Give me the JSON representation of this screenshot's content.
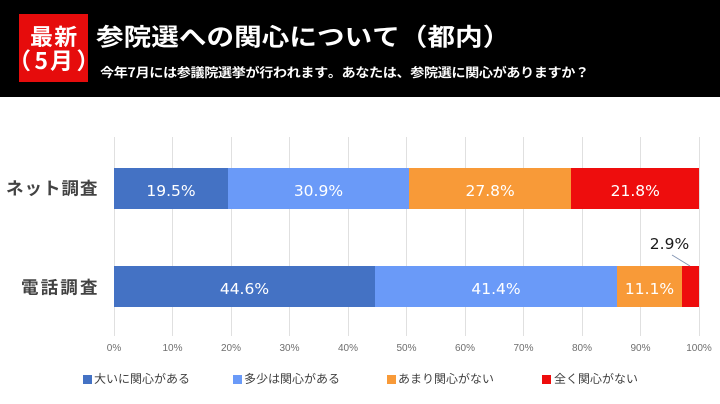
{
  "header": {
    "badge": {
      "line1": "最新",
      "line2": "（5月）"
    },
    "title": "参院選への関心について（都内）",
    "subtitle": "今年7月には参議院選挙が行われます。あなたは、参院選に関心がありますか？"
  },
  "chart_data": {
    "type": "bar",
    "orientation": "horizontal",
    "stacked": true,
    "unit": "%",
    "categories": [
      "ネット調査",
      "電話調査"
    ],
    "series": [
      {
        "name": "大いに関心がある",
        "color": "#4472c4",
        "values": [
          19.5,
          44.6
        ]
      },
      {
        "name": "多少は関心がある",
        "color": "#6a9af8",
        "values": [
          30.9,
          41.4
        ]
      },
      {
        "name": "あまり関心がない",
        "color": "#f89a38",
        "values": [
          27.8,
          11.1
        ]
      },
      {
        "name": "全く関心がない",
        "color": "#ee0d0d",
        "values": [
          21.8,
          2.9
        ]
      }
    ],
    "labels": [
      [
        "19.5%",
        "30.9%",
        "27.8%",
        "21.8%"
      ],
      [
        "44.6%",
        "41.4%",
        "11.1%",
        "2.9%"
      ]
    ],
    "xlim": [
      0,
      100
    ],
    "x_ticks": [
      "0%",
      "10%",
      "20%",
      "30%",
      "40%",
      "50%",
      "60%",
      "70%",
      "80%",
      "90%",
      "100%"
    ],
    "grid": true,
    "legend_position": "bottom"
  },
  "colors": {
    "badge_bg": "#e60c0c",
    "header_bg": "#000000",
    "title_text": "#ffffff",
    "bar_label_text": "#ffffff",
    "outside_label_text": "#1a1a1a",
    "axis_text": "#6e6e6e",
    "category_text": "#434343",
    "legend_text": "#3f3f3f",
    "gridline": "#e0e0e0",
    "leader_line": "#8496b4"
  }
}
